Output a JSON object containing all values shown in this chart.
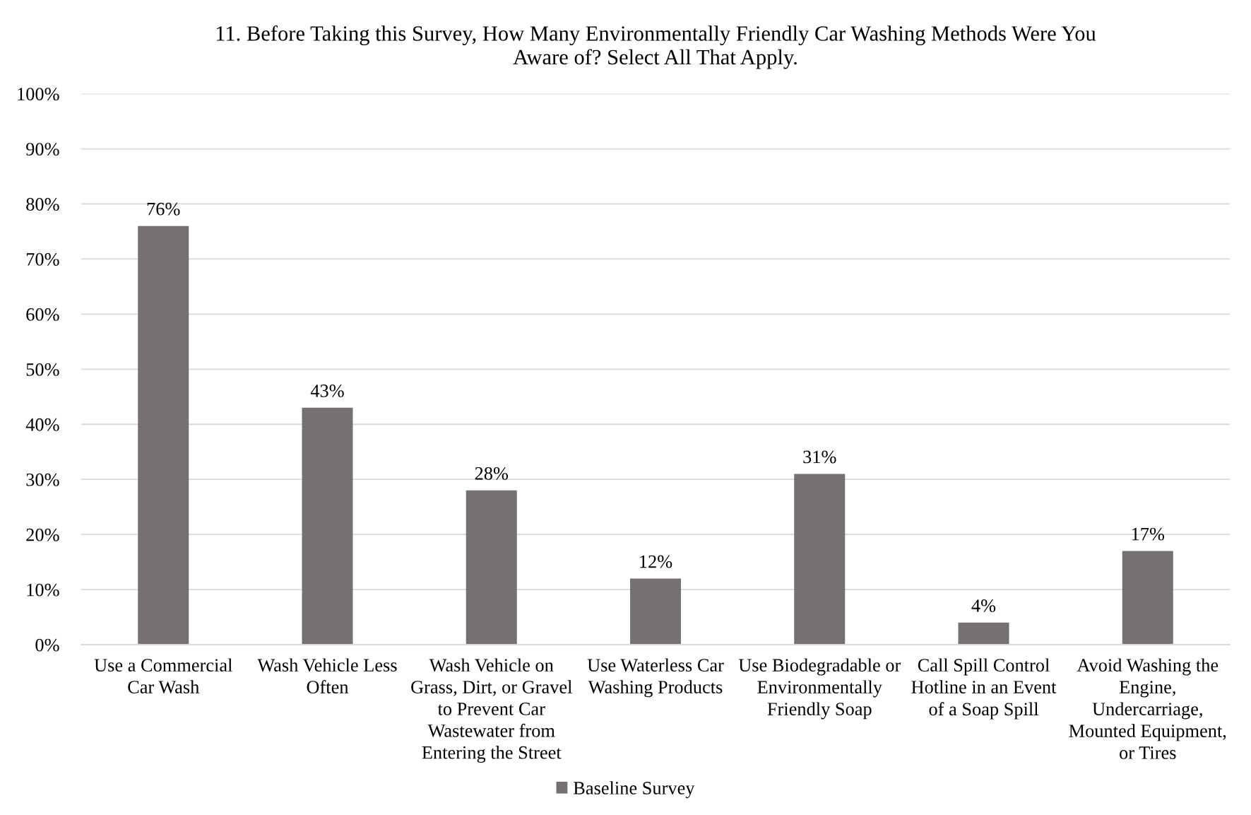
{
  "chart_data": {
    "type": "bar",
    "title": "11. Before Taking this Survey, How Many Environmentally Friendly Car Washing Methods Were You\nAware of? Select All That Apply.",
    "categories": [
      "Use a Commercial\nCar Wash",
      "Wash Vehicle Less\nOften",
      "Wash Vehicle on\nGrass, Dirt, or Gravel\nto Prevent Car\nWastewater from\nEntering the Street",
      "Use Waterless Car\nWashing Products",
      "Use Biodegradable or\nEnvironmentally\nFriendly Soap",
      "Call Spill Control\nHotline in an Event\nof a Soap Spill",
      "Avoid Washing the\nEngine,\nUndercarriage,\nMounted Equipment,\nor Tires"
    ],
    "series": [
      {
        "name": "Baseline Survey",
        "color": "#767171",
        "values": [
          76,
          43,
          28,
          12,
          31,
          4,
          17
        ],
        "value_labels": [
          "76%",
          "43%",
          "28%",
          "12%",
          "31%",
          "4%",
          "17%"
        ]
      }
    ],
    "ylim": [
      0,
      100
    ],
    "yticks": [
      {
        "value": 0,
        "label": "0%"
      },
      {
        "value": 10,
        "label": "10%"
      },
      {
        "value": 20,
        "label": "20%"
      },
      {
        "value": 30,
        "label": "30%"
      },
      {
        "value": 40,
        "label": "40%"
      },
      {
        "value": 50,
        "label": "50%"
      },
      {
        "value": 60,
        "label": "60%"
      },
      {
        "value": 70,
        "label": "70%"
      },
      {
        "value": 80,
        "label": "80%"
      },
      {
        "value": 90,
        "label": "90%"
      },
      {
        "value": 100,
        "label": "100%"
      }
    ],
    "grid": "y",
    "legend": "bottom"
  }
}
